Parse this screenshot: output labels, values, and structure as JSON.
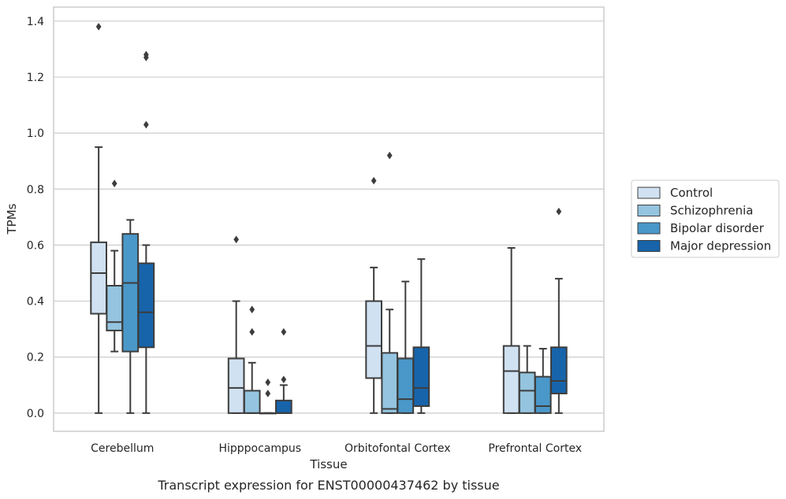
{
  "caption": "Transcript expression for ENST00000437462 by tissue",
  "chart_data": {
    "type": "box",
    "xlabel": "Tissue",
    "ylabel": "TPMs",
    "ylim": [
      -0.065,
      1.45
    ],
    "yticks": [
      0.0,
      0.2,
      0.4,
      0.6,
      0.8,
      1.0,
      1.2,
      1.4
    ],
    "ytick_labels": [
      "0.0",
      "0.2",
      "0.4",
      "0.6",
      "0.8",
      "1.0",
      "1.2",
      "1.4"
    ],
    "grid": "horizontal",
    "legend_position": "right",
    "categories": [
      "Cerebellum",
      "Hipppocampus",
      "Orbitofontal Cortex",
      "Prefrontal Cortex"
    ],
    "series": [
      {
        "name": "Control",
        "color": "#d0e1f2",
        "boxes": [
          {
            "whislo": 0.0,
            "q1": 0.355,
            "med": 0.5,
            "q3": 0.61,
            "whishi": 0.95,
            "fliers": [
              1.38
            ]
          },
          {
            "whislo": 0.0,
            "q1": 0.0,
            "med": 0.09,
            "q3": 0.195,
            "whishi": 0.4,
            "fliers": [
              0.62
            ]
          },
          {
            "whislo": 0.0,
            "q1": 0.125,
            "med": 0.24,
            "q3": 0.4,
            "whishi": 0.52,
            "fliers": [
              0.83
            ]
          },
          {
            "whislo": 0.0,
            "q1": 0.0,
            "med": 0.15,
            "q3": 0.24,
            "whishi": 0.59,
            "fliers": []
          }
        ]
      },
      {
        "name": "Schizophrenia",
        "color": "#94c4df",
        "boxes": [
          {
            "whislo": 0.22,
            "q1": 0.295,
            "med": 0.325,
            "q3": 0.455,
            "whishi": 0.58,
            "fliers": [
              0.82
            ]
          },
          {
            "whislo": 0.0,
            "q1": 0.0,
            "med": 0.0,
            "q3": 0.08,
            "whishi": 0.18,
            "fliers": [
              0.29,
              0.37
            ]
          },
          {
            "whislo": 0.0,
            "q1": 0.0,
            "med": 0.015,
            "q3": 0.215,
            "whishi": 0.37,
            "fliers": [
              0.92
            ]
          },
          {
            "whislo": 0.0,
            "q1": 0.0,
            "med": 0.08,
            "q3": 0.145,
            "whishi": 0.24,
            "fliers": []
          }
        ]
      },
      {
        "name": "Bipolar disorder",
        "color": "#4a98c9",
        "boxes": [
          {
            "whislo": 0.0,
            "q1": 0.22,
            "med": 0.465,
            "q3": 0.64,
            "whishi": 0.69,
            "fliers": []
          },
          {
            "whislo": 0.0,
            "q1": 0.0,
            "med": 0.0,
            "q3": 0.0,
            "whishi": 0.0,
            "fliers": [
              0.07,
              0.11
            ]
          },
          {
            "whislo": 0.0,
            "q1": 0.0,
            "med": 0.05,
            "q3": 0.195,
            "whishi": 0.47,
            "fliers": []
          },
          {
            "whislo": 0.0,
            "q1": 0.0,
            "med": 0.025,
            "q3": 0.13,
            "whishi": 0.23,
            "fliers": []
          }
        ]
      },
      {
        "name": "Major depression",
        "color": "#1764ab",
        "boxes": [
          {
            "whislo": 0.0,
            "q1": 0.235,
            "med": 0.36,
            "q3": 0.535,
            "whishi": 0.6,
            "fliers": [
              1.03,
              1.27,
              1.28
            ]
          },
          {
            "whislo": 0.0,
            "q1": 0.0,
            "med": 0.0,
            "q3": 0.045,
            "whishi": 0.1,
            "fliers": [
              0.12,
              0.29
            ]
          },
          {
            "whislo": 0.0,
            "q1": 0.025,
            "med": 0.09,
            "q3": 0.235,
            "whishi": 0.55,
            "fliers": []
          },
          {
            "whislo": 0.0,
            "q1": 0.07,
            "med": 0.115,
            "q3": 0.235,
            "whishi": 0.48,
            "fliers": [
              0.72
            ]
          }
        ]
      }
    ]
  }
}
